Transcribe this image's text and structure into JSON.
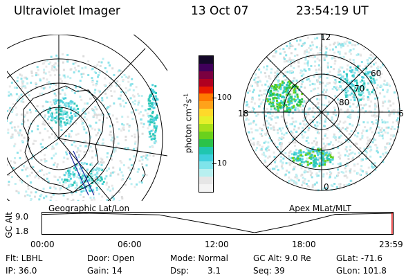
{
  "header": {
    "instrument": "Ultraviolet Imager",
    "date": "13 Oct 07",
    "time": "23:54:19 UT"
  },
  "left_panel": {
    "caption": "Geographic Lat/Lon"
  },
  "right_panel": {
    "caption": "Apex MLat/MLT",
    "mlt_labels": {
      "top": "12",
      "bottom": "0",
      "left": "18",
      "right": "6"
    },
    "lat_labels": [
      "60",
      "70",
      "80"
    ]
  },
  "colorbar": {
    "label": "photon cm",
    "label_sup1": "-2",
    "label_s": "s",
    "label_sup2": "-1",
    "ticks": [
      "100",
      "10"
    ],
    "colors": [
      "#f4f4f4",
      "#e6e6e6",
      "#b8f0f0",
      "#7ee4ea",
      "#3ecfdc",
      "#20c6b0",
      "#2bc24a",
      "#6ad11c",
      "#a8e01a",
      "#e6f02a",
      "#ffd92a",
      "#ffa21a",
      "#ff7a00",
      "#e81a00",
      "#b00020",
      "#7a0040",
      "#40005a",
      "#140828"
    ],
    "scale": "log"
  },
  "timeline": {
    "axis_label": "GC Alt",
    "y_ticks": [
      "9.0",
      "1.8"
    ],
    "x_ticks": [
      "00:00",
      "06:00",
      "12:00",
      "18:00",
      "23:59"
    ],
    "altitude_profile": [
      {
        "t": 0,
        "alt": 8.6
      },
      {
        "t": 3,
        "alt": 9.0
      },
      {
        "t": 8,
        "alt": 8.4
      },
      {
        "t": 12,
        "alt": 4.5
      },
      {
        "t": 14.5,
        "alt": 1.8
      },
      {
        "t": 17,
        "alt": 4.5
      },
      {
        "t": 20,
        "alt": 8.6
      },
      {
        "t": 23.98,
        "alt": 9.0
      }
    ],
    "current_time_hours": 23.9
  },
  "info": {
    "filter": "Flt: LBHL",
    "ip": "IP: 36.0",
    "door": "Door: Open",
    "gain": "Gain: 14",
    "mode": "Mode: Normal",
    "dsp_label": "Dsp:",
    "dsp_value": "3.1",
    "gc_alt": "GC Alt: 9.0 Re",
    "seq": "Seq: 39",
    "glat": "GLat: -71.6",
    "glon": "GLon: 101.8"
  }
}
